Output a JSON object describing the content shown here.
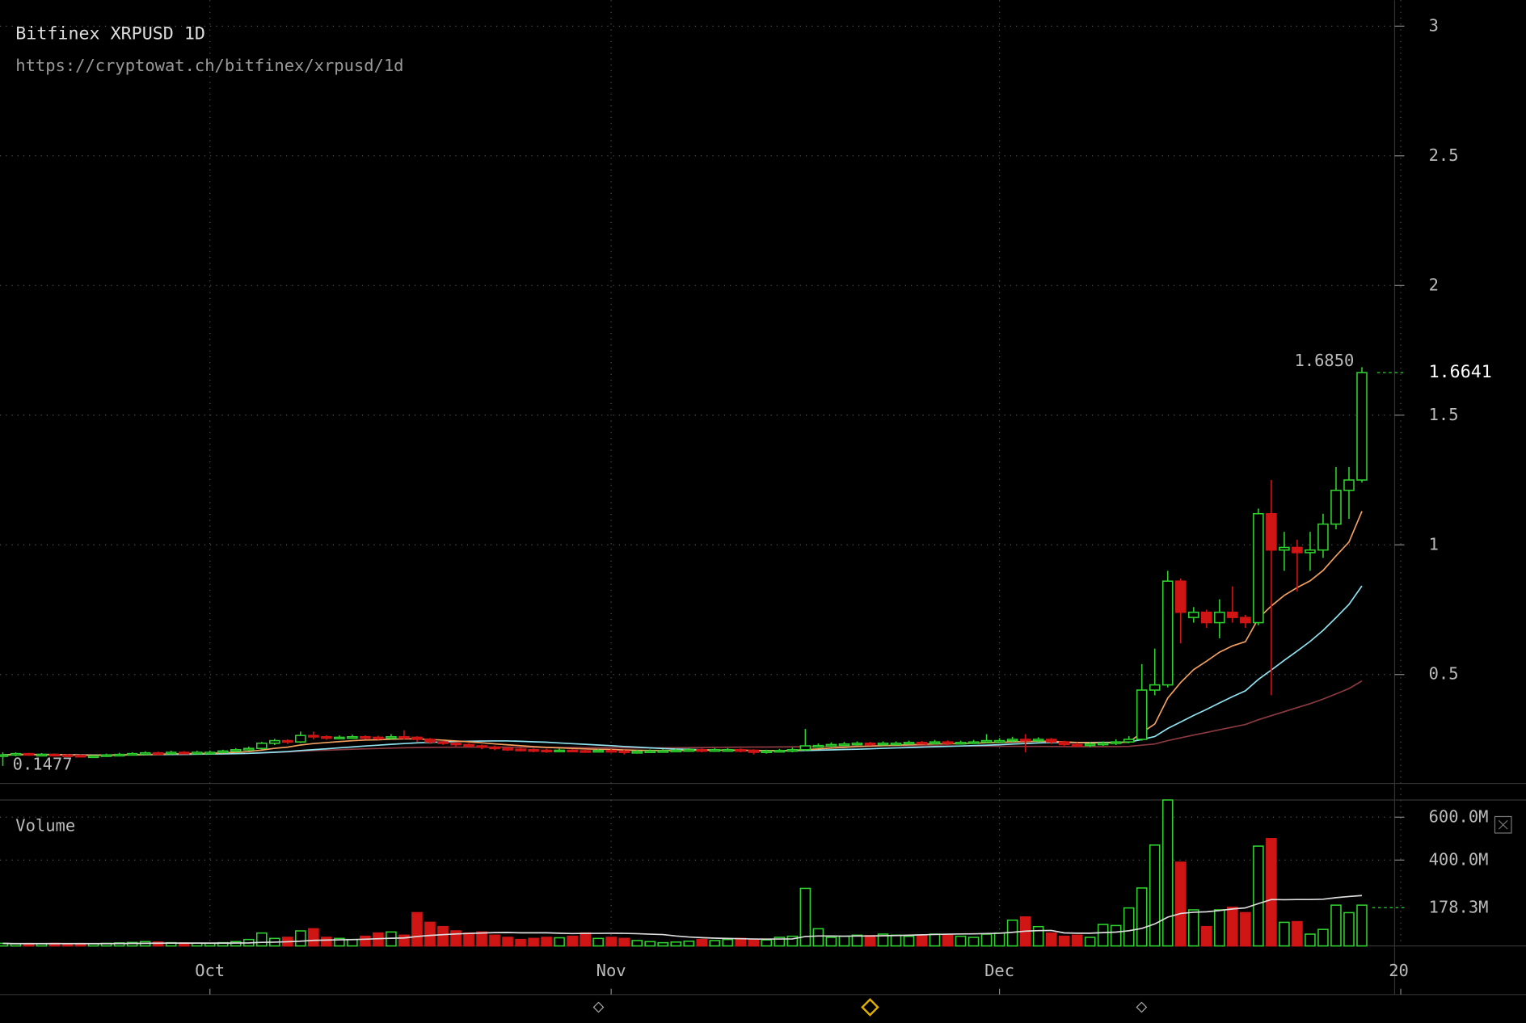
{
  "header": {
    "title": "Bitfinex XRPUSD 1D",
    "url": "https://cryptowat.ch/bitfinex/xrpusd/1d",
    "volume_title": "Volume"
  },
  "chart_data": {
    "type": "candlestick",
    "up_color": "#2fd12f",
    "down_color": "#d01515",
    "ylim": [
      0.08,
      3.1
    ],
    "yticks": [
      0.5,
      1,
      1.5,
      2,
      2.5,
      3
    ],
    "xticks": [
      {
        "value": 16,
        "label": "Oct"
      },
      {
        "value": 47,
        "label": "Nov"
      },
      {
        "value": 77,
        "label": "Dec"
      },
      {
        "value": 108,
        "label": "20"
      }
    ],
    "open": [
      0.188,
      0.19,
      0.195,
      0.19,
      0.192,
      0.19,
      0.188,
      0.185,
      0.186,
      0.19,
      0.192,
      0.195,
      0.198,
      0.196,
      0.2,
      0.198,
      0.2,
      0.2,
      0.205,
      0.21,
      0.215,
      0.235,
      0.245,
      0.24,
      0.265,
      0.26,
      0.255,
      0.258,
      0.26,
      0.258,
      0.255,
      0.26,
      0.258,
      0.25,
      0.24,
      0.235,
      0.23,
      0.225,
      0.22,
      0.215,
      0.212,
      0.21,
      0.208,
      0.205,
      0.208,
      0.206,
      0.205,
      0.207,
      0.205,
      0.2,
      0.203,
      0.205,
      0.206,
      0.208,
      0.21,
      0.208,
      0.21,
      0.21,
      0.208,
      0.2,
      0.205,
      0.207,
      0.21,
      0.225,
      0.226,
      0.23,
      0.232,
      0.235,
      0.232,
      0.235,
      0.235,
      0.238,
      0.236,
      0.24,
      0.235,
      0.238,
      0.24,
      0.245,
      0.245,
      0.25,
      0.245,
      0.25,
      0.24,
      0.23,
      0.228,
      0.232,
      0.235,
      0.24,
      0.25,
      0.44,
      0.46,
      0.86,
      0.72,
      0.74,
      0.7,
      0.74,
      0.72,
      0.7,
      1.12,
      0.98,
      0.99,
      0.97,
      0.98,
      1.08,
      1.21,
      1.25
    ],
    "high": [
      0.2,
      0.2,
      0.198,
      0.197,
      0.196,
      0.194,
      0.192,
      0.19,
      0.195,
      0.198,
      0.2,
      0.204,
      0.203,
      0.206,
      0.205,
      0.206,
      0.207,
      0.21,
      0.216,
      0.222,
      0.24,
      0.252,
      0.25,
      0.28,
      0.28,
      0.266,
      0.265,
      0.268,
      0.266,
      0.264,
      0.27,
      0.285,
      0.262,
      0.255,
      0.245,
      0.24,
      0.235,
      0.23,
      0.226,
      0.22,
      0.218,
      0.215,
      0.214,
      0.214,
      0.213,
      0.212,
      0.213,
      0.212,
      0.21,
      0.21,
      0.211,
      0.212,
      0.214,
      0.216,
      0.215,
      0.216,
      0.216,
      0.215,
      0.212,
      0.21,
      0.213,
      0.218,
      0.29,
      0.234,
      0.238,
      0.24,
      0.242,
      0.24,
      0.242,
      0.242,
      0.245,
      0.244,
      0.248,
      0.246,
      0.245,
      0.248,
      0.27,
      0.255,
      0.26,
      0.27,
      0.258,
      0.255,
      0.245,
      0.238,
      0.24,
      0.242,
      0.25,
      0.262,
      0.54,
      0.6,
      0.9,
      0.87,
      0.76,
      0.75,
      0.79,
      0.84,
      0.73,
      1.14,
      1.25,
      1.05,
      1.02,
      1.05,
      1.12,
      1.3,
      1.3,
      1.685
    ],
    "low": [
      0.1477,
      0.185,
      0.186,
      0.185,
      0.184,
      0.182,
      0.18,
      0.18,
      0.182,
      0.186,
      0.188,
      0.19,
      0.19,
      0.192,
      0.193,
      0.194,
      0.195,
      0.196,
      0.2,
      0.205,
      0.21,
      0.228,
      0.232,
      0.236,
      0.25,
      0.248,
      0.25,
      0.252,
      0.25,
      0.248,
      0.25,
      0.25,
      0.24,
      0.232,
      0.228,
      0.222,
      0.218,
      0.212,
      0.208,
      0.205,
      0.203,
      0.2,
      0.198,
      0.2,
      0.2,
      0.198,
      0.2,
      0.198,
      0.192,
      0.195,
      0.198,
      0.2,
      0.2,
      0.202,
      0.2,
      0.202,
      0.203,
      0.2,
      0.192,
      0.195,
      0.2,
      0.2,
      0.205,
      0.218,
      0.22,
      0.224,
      0.226,
      0.225,
      0.226,
      0.228,
      0.23,
      0.23,
      0.23,
      0.228,
      0.23,
      0.232,
      0.235,
      0.238,
      0.24,
      0.2,
      0.238,
      0.232,
      0.222,
      0.22,
      0.22,
      0.225,
      0.228,
      0.235,
      0.245,
      0.42,
      0.45,
      0.62,
      0.7,
      0.68,
      0.64,
      0.7,
      0.68,
      0.69,
      0.42,
      0.9,
      0.82,
      0.9,
      0.95,
      1.06,
      1.1,
      1.24
    ],
    "close": [
      0.19,
      0.195,
      0.19,
      0.192,
      0.19,
      0.188,
      0.185,
      0.186,
      0.19,
      0.192,
      0.195,
      0.198,
      0.196,
      0.2,
      0.198,
      0.2,
      0.2,
      0.205,
      0.21,
      0.215,
      0.235,
      0.245,
      0.24,
      0.265,
      0.26,
      0.255,
      0.258,
      0.26,
      0.258,
      0.255,
      0.26,
      0.258,
      0.25,
      0.24,
      0.235,
      0.23,
      0.225,
      0.22,
      0.215,
      0.212,
      0.21,
      0.208,
      0.205,
      0.208,
      0.206,
      0.205,
      0.207,
      0.205,
      0.2,
      0.203,
      0.205,
      0.206,
      0.208,
      0.21,
      0.208,
      0.21,
      0.21,
      0.208,
      0.2,
      0.205,
      0.207,
      0.21,
      0.225,
      0.226,
      0.23,
      0.232,
      0.235,
      0.232,
      0.235,
      0.235,
      0.238,
      0.236,
      0.24,
      0.235,
      0.238,
      0.24,
      0.245,
      0.245,
      0.25,
      0.245,
      0.25,
      0.24,
      0.23,
      0.228,
      0.232,
      0.235,
      0.24,
      0.25,
      0.44,
      0.46,
      0.86,
      0.74,
      0.74,
      0.7,
      0.74,
      0.72,
      0.7,
      1.12,
      0.98,
      0.99,
      0.97,
      0.98,
      1.08,
      1.21,
      1.25,
      1.6641
    ],
    "annotations": [
      {
        "value": 1.685,
        "label": "1.6850"
      }
    ],
    "volume": {
      "ylim": [
        0,
        680
      ],
      "yticks": [
        {
          "value": 600,
          "label": "600.0M"
        },
        {
          "value": 400,
          "label": "400.0M"
        }
      ],
      "average": {
        "value": 178.3,
        "label": "178.3M"
      },
      "values": [
        12,
        10,
        11,
        10,
        12,
        10,
        11,
        10,
        12,
        14,
        16,
        20,
        18,
        15,
        14,
        13,
        12,
        15,
        20,
        30,
        60,
        35,
        40,
        70,
        80,
        40,
        35,
        30,
        45,
        60,
        65,
        50,
        155,
        110,
        90,
        70,
        60,
        65,
        50,
        40,
        30,
        35,
        40,
        38,
        45,
        60,
        35,
        40,
        35,
        25,
        20,
        15,
        18,
        22,
        30,
        25,
        30,
        35,
        30,
        28,
        40,
        45,
        268,
        80,
        40,
        45,
        50,
        48,
        55,
        50,
        45,
        48,
        55,
        50,
        45,
        40,
        55,
        60,
        120,
        135,
        90,
        60,
        45,
        50,
        40,
        100,
        95,
        177,
        270,
        470,
        680,
        390,
        168,
        90,
        168,
        180,
        155,
        465,
        500,
        110,
        113,
        55,
        77,
        190,
        155,
        190
      ]
    }
  }
}
